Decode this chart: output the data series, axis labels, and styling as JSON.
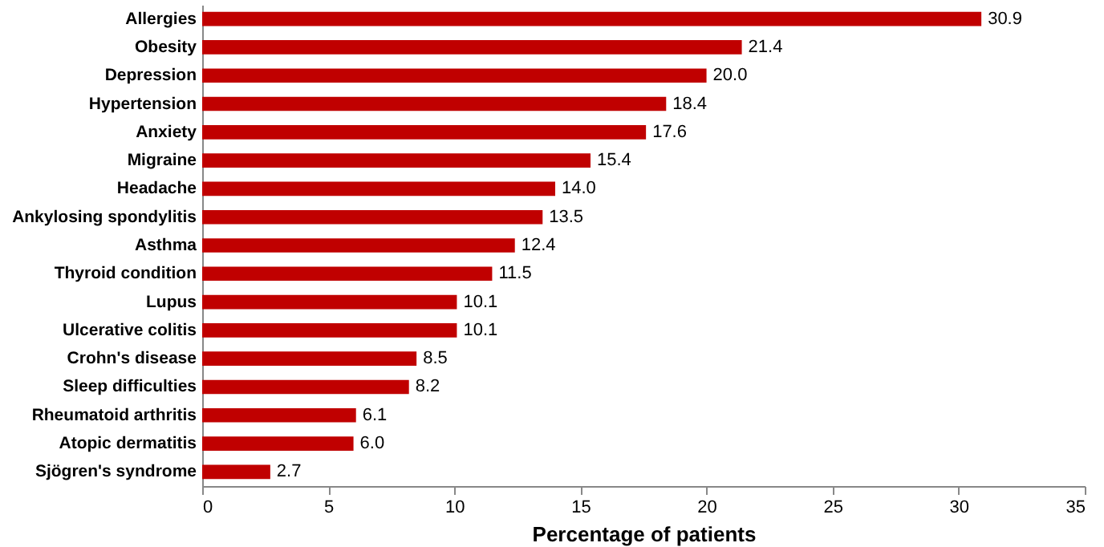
{
  "chart_data": {
    "type": "bar",
    "orientation": "horizontal",
    "xlabel": "Percentage of patients",
    "categories": [
      "Allergies",
      "Obesity",
      "Depression",
      "Hypertension",
      "Anxiety",
      "Migraine",
      "Headache",
      "Ankylosing spondylitis",
      "Asthma",
      "Thyroid condition",
      "Lupus",
      "Ulcerative colitis",
      "Crohn's disease",
      "Sleep difficulties",
      "Rheumatoid arthritis",
      "Atopic dermatitis",
      "Sjögren's syndrome"
    ],
    "values": [
      30.9,
      21.4,
      20.0,
      18.4,
      17.6,
      15.4,
      14.0,
      13.5,
      12.4,
      11.5,
      10.1,
      10.1,
      8.5,
      8.2,
      6.1,
      6.0,
      2.7
    ],
    "value_labels": [
      "30.9",
      "21.4",
      "20.0",
      "18.4",
      "17.6",
      "15.4",
      "14.0",
      "13.5",
      "12.4",
      "11.5",
      "10.1",
      "10.1",
      "8.5",
      "8.2",
      "6.1",
      "6.0",
      "2.7"
    ],
    "color": "#c00000",
    "xlim": [
      0,
      35
    ],
    "xticks": [
      0,
      5,
      10,
      15,
      20,
      25,
      30,
      35
    ],
    "grid": false
  }
}
